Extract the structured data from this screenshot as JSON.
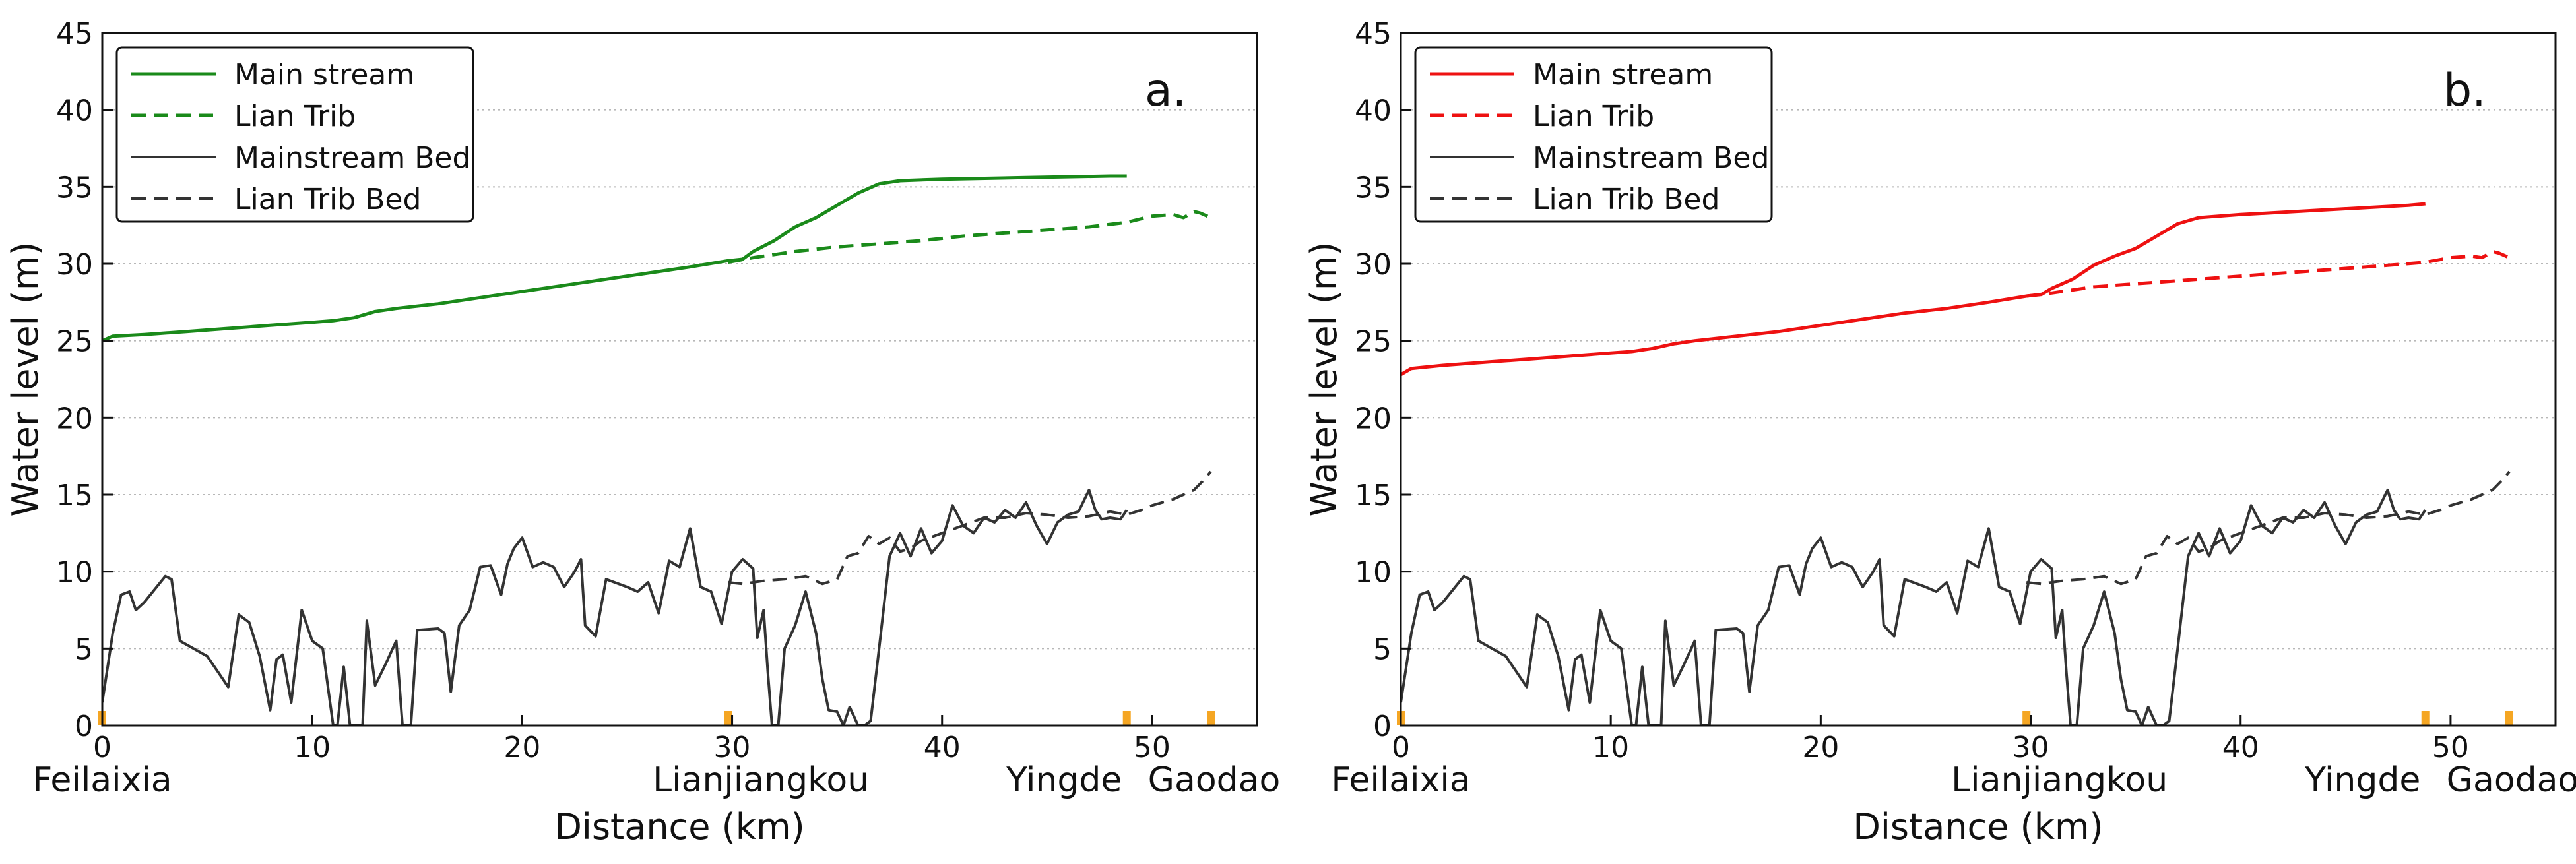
{
  "chart_data": [
    {
      "type": "line",
      "panel_label": "a.",
      "xlabel": "Distance (km)",
      "ylabel": "Water level (m)",
      "xlim": [
        0,
        55
      ],
      "ylim": [
        0,
        45
      ],
      "xticks": [
        0,
        10,
        20,
        30,
        40,
        50
      ],
      "yticks": [
        0,
        5,
        10,
        15,
        20,
        25,
        30,
        35,
        40,
        45
      ],
      "grid": "horizontal dotted",
      "legend_position": "top-left",
      "stations": [
        {
          "name": "Feilaixia",
          "x": 0
        },
        {
          "name": "Lianjiangkou",
          "x": 29.8
        },
        {
          "name": "Yingde",
          "x": 48.8
        },
        {
          "name": "Gaodao",
          "x": 52.8
        }
      ],
      "station_marker_color": "#f5a623",
      "series": [
        {
          "name": "Main stream",
          "color": "#1a8a1a",
          "style": "solid",
          "x": [
            0,
            0.5,
            2,
            4,
            6,
            8,
            10,
            11,
            12,
            13,
            14,
            16,
            18,
            20,
            22,
            24,
            26,
            28,
            29.8,
            30.5,
            31,
            32,
            33,
            34,
            35,
            36,
            37,
            38,
            40,
            44,
            48,
            48.8
          ],
          "y": [
            25.0,
            25.3,
            25.4,
            25.6,
            25.8,
            26.0,
            26.2,
            26.3,
            26.5,
            26.9,
            27.1,
            27.4,
            27.8,
            28.2,
            28.6,
            29.0,
            29.4,
            29.8,
            30.2,
            30.3,
            30.8,
            31.5,
            32.4,
            33.0,
            33.8,
            34.6,
            35.2,
            35.4,
            35.5,
            35.6,
            35.7,
            35.7
          ]
        },
        {
          "name": "Lian Trib",
          "color": "#1a8a1a",
          "style": "dashed",
          "x": [
            29.8,
            31,
            33,
            35,
            37,
            39,
            41,
            43,
            45,
            47,
            48.8,
            50,
            51,
            51.5,
            52,
            52.3,
            52.8
          ],
          "y": [
            30.1,
            30.4,
            30.8,
            31.1,
            31.3,
            31.5,
            31.8,
            32.0,
            32.2,
            32.4,
            32.7,
            33.1,
            33.2,
            33.0,
            33.4,
            33.3,
            33.0
          ]
        },
        {
          "name": "Mainstream Bed",
          "color": "#333333",
          "style": "solid",
          "x": [
            0,
            0.5,
            0.9,
            1.3,
            1.6,
            2,
            3,
            3.3,
            3.7,
            5,
            5.5,
            6,
            6.5,
            7,
            7.5,
            8,
            8.3,
            8.6,
            9,
            9.5,
            10,
            10.5,
            10.8,
            11,
            11.2,
            11.5,
            11.8,
            12,
            12.4,
            12.6,
            13,
            13.5,
            14,
            14.3,
            14.7,
            15,
            16,
            16.3,
            16.6,
            17,
            17.5,
            18,
            18.5,
            19,
            19.3,
            19.6,
            20,
            20.5,
            21,
            21.5,
            22,
            22.5,
            22.8,
            23,
            23.5,
            24,
            25,
            25.5,
            26,
            26.5,
            27,
            27.5,
            28,
            28.5,
            29,
            29.5,
            30,
            30.5,
            31,
            31.2,
            31.5,
            31.7,
            31.9,
            32.2,
            32.5,
            33,
            33.5,
            34,
            34.3,
            34.6,
            35,
            35.3,
            35.6,
            36,
            36.3,
            36.6,
            37,
            37.5,
            38,
            38.5,
            39,
            39.5,
            40,
            40.5,
            41,
            41.5,
            42,
            42.5,
            43,
            43.5,
            44,
            44.5,
            45,
            45.5,
            46,
            46.5,
            47,
            47.3,
            47.6,
            48,
            48.5,
            48.8
          ],
          "y": [
            1.5,
            6.0,
            8.5,
            8.7,
            7.5,
            8.0,
            9.7,
            9.5,
            5.5,
            4.5,
            3.5,
            2.5,
            7.2,
            6.7,
            4.5,
            1.0,
            4.3,
            4.6,
            1.5,
            7.5,
            5.5,
            5.0,
            2.0,
            0,
            0,
            3.8,
            0,
            0,
            0,
            6.8,
            2.6,
            4.0,
            5.5,
            0,
            0,
            6.2,
            6.3,
            6.0,
            2.2,
            6.5,
            7.5,
            10.3,
            10.4,
            8.5,
            10.5,
            11.5,
            12.2,
            10.3,
            10.6,
            10.3,
            9.0,
            10.0,
            10.8,
            6.5,
            5.8,
            9.5,
            9.0,
            8.7,
            9.3,
            7.3,
            10.7,
            10.3,
            12.8,
            9.0,
            8.7,
            6.6,
            10.0,
            10.8,
            10.2,
            5.7,
            7.5,
            3.5,
            0,
            0,
            5.0,
            6.5,
            8.7,
            6.0,
            3.0,
            1.0,
            0.9,
            0,
            1.2,
            0,
            0,
            0.3,
            5.0,
            11.0,
            12.5,
            11.0,
            12.8,
            11.2,
            12.0,
            14.3,
            13.0,
            12.5,
            13.5,
            13.2,
            14.0,
            13.5,
            14.5,
            13.0,
            11.8,
            13.2,
            13.7,
            13.9,
            15.3,
            14.0,
            13.4,
            13.5,
            13.4,
            14.0
          ]
        },
        {
          "name": "Lian Trib Bed",
          "color": "#333333",
          "style": "dashed",
          "x": [
            29.8,
            30.5,
            31.5,
            32.5,
            33.5,
            34.3,
            35,
            35.5,
            36,
            36.5,
            37,
            37.5,
            38,
            38.5,
            39,
            40,
            41,
            42,
            43,
            44,
            45,
            46,
            47,
            48,
            48.8,
            49.5,
            50,
            50.5,
            51,
            51.5,
            52,
            52.5,
            52.8
          ],
          "y": [
            9.3,
            9.2,
            9.4,
            9.5,
            9.7,
            9.2,
            9.5,
            11.0,
            11.2,
            12.3,
            11.8,
            12.2,
            11.3,
            11.5,
            12.0,
            12.5,
            13.0,
            13.5,
            13.5,
            13.8,
            13.7,
            13.5,
            13.6,
            13.9,
            13.7,
            14.0,
            14.3,
            14.5,
            14.7,
            15.0,
            15.3,
            16.0,
            16.5
          ]
        }
      ]
    },
    {
      "type": "line",
      "panel_label": "b.",
      "xlabel": "Distance (km)",
      "ylabel": "Water level (m)",
      "xlim": [
        0,
        55
      ],
      "ylim": [
        0,
        45
      ],
      "xticks": [
        0,
        10,
        20,
        30,
        40,
        50
      ],
      "yticks": [
        0,
        5,
        10,
        15,
        20,
        25,
        30,
        35,
        40,
        45
      ],
      "grid": "horizontal dotted",
      "legend_position": "top-left",
      "stations": [
        {
          "name": "Feilaixia",
          "x": 0
        },
        {
          "name": "Lianjiangkou",
          "x": 29.8
        },
        {
          "name": "Yingde",
          "x": 48.8
        },
        {
          "name": "Gaodao",
          "x": 52.8
        }
      ],
      "station_marker_color": "#f5a623",
      "series": [
        {
          "name": "Main stream",
          "color": "#ee1111",
          "style": "solid",
          "x": [
            0,
            0.5,
            2,
            4,
            6,
            8,
            10,
            11,
            12,
            13,
            14,
            16,
            18,
            20,
            22,
            24,
            26,
            28,
            29.8,
            30.5,
            31,
            32,
            33,
            34,
            35,
            36,
            37,
            38,
            40,
            44,
            48,
            48.8
          ],
          "y": [
            22.8,
            23.2,
            23.4,
            23.6,
            23.8,
            24.0,
            24.2,
            24.3,
            24.5,
            24.8,
            25.0,
            25.3,
            25.6,
            26.0,
            26.4,
            26.8,
            27.1,
            27.5,
            27.9,
            28.0,
            28.4,
            29.0,
            29.9,
            30.5,
            31.0,
            31.8,
            32.6,
            33.0,
            33.2,
            33.5,
            33.8,
            33.9
          ]
        },
        {
          "name": "Lian Trib",
          "color": "#ee1111",
          "style": "dashed",
          "x": [
            29.8,
            31,
            33,
            35,
            37,
            39,
            41,
            43,
            45,
            47,
            48.8,
            50,
            51,
            51.5,
            52,
            52.3,
            52.8
          ],
          "y": [
            27.9,
            28.1,
            28.5,
            28.7,
            28.9,
            29.1,
            29.3,
            29.5,
            29.7,
            29.9,
            30.1,
            30.4,
            30.5,
            30.4,
            30.8,
            30.7,
            30.4
          ]
        },
        {
          "name": "Mainstream Bed",
          "color": "#333333",
          "style": "solid",
          "x": [
            0,
            0.5,
            0.9,
            1.3,
            1.6,
            2,
            3,
            3.3,
            3.7,
            5,
            5.5,
            6,
            6.5,
            7,
            7.5,
            8,
            8.3,
            8.6,
            9,
            9.5,
            10,
            10.5,
            10.8,
            11,
            11.2,
            11.5,
            11.8,
            12,
            12.4,
            12.6,
            13,
            13.5,
            14,
            14.3,
            14.7,
            15,
            16,
            16.3,
            16.6,
            17,
            17.5,
            18,
            18.5,
            19,
            19.3,
            19.6,
            20,
            20.5,
            21,
            21.5,
            22,
            22.5,
            22.8,
            23,
            23.5,
            24,
            25,
            25.5,
            26,
            26.5,
            27,
            27.5,
            28,
            28.5,
            29,
            29.5,
            30,
            30.5,
            31,
            31.2,
            31.5,
            31.7,
            31.9,
            32.2,
            32.5,
            33,
            33.5,
            34,
            34.3,
            34.6,
            35,
            35.3,
            35.6,
            36,
            36.3,
            36.6,
            37,
            37.5,
            38,
            38.5,
            39,
            39.5,
            40,
            40.5,
            41,
            41.5,
            42,
            42.5,
            43,
            43.5,
            44,
            44.5,
            45,
            45.5,
            46,
            46.5,
            47,
            47.3,
            47.6,
            48,
            48.5,
            48.8
          ],
          "y": [
            1.5,
            6.0,
            8.5,
            8.7,
            7.5,
            8.0,
            9.7,
            9.5,
            5.5,
            4.5,
            3.5,
            2.5,
            7.2,
            6.7,
            4.5,
            1.0,
            4.3,
            4.6,
            1.5,
            7.5,
            5.5,
            5.0,
            2.0,
            0,
            0,
            3.8,
            0,
            0,
            0,
            6.8,
            2.6,
            4.0,
            5.5,
            0,
            0,
            6.2,
            6.3,
            6.0,
            2.2,
            6.5,
            7.5,
            10.3,
            10.4,
            8.5,
            10.5,
            11.5,
            12.2,
            10.3,
            10.6,
            10.3,
            9.0,
            10.0,
            10.8,
            6.5,
            5.8,
            9.5,
            9.0,
            8.7,
            9.3,
            7.3,
            10.7,
            10.3,
            12.8,
            9.0,
            8.7,
            6.6,
            10.0,
            10.8,
            10.2,
            5.7,
            7.5,
            3.5,
            0,
            0,
            5.0,
            6.5,
            8.7,
            6.0,
            3.0,
            1.0,
            0.9,
            0,
            1.2,
            0,
            0,
            0.3,
            5.0,
            11.0,
            12.5,
            11.0,
            12.8,
            11.2,
            12.0,
            14.3,
            13.0,
            12.5,
            13.5,
            13.2,
            14.0,
            13.5,
            14.5,
            13.0,
            11.8,
            13.2,
            13.7,
            13.9,
            15.3,
            14.0,
            13.4,
            13.5,
            13.4,
            14.0
          ]
        },
        {
          "name": "Lian Trib Bed",
          "color": "#333333",
          "style": "dashed",
          "x": [
            29.8,
            30.5,
            31.5,
            32.5,
            33.5,
            34.3,
            35,
            35.5,
            36,
            36.5,
            37,
            37.5,
            38,
            38.5,
            39,
            40,
            41,
            42,
            43,
            44,
            45,
            46,
            47,
            48,
            48.8,
            49.5,
            50,
            50.5,
            51,
            51.5,
            52,
            52.5,
            52.8
          ],
          "y": [
            9.3,
            9.2,
            9.4,
            9.5,
            9.7,
            9.2,
            9.5,
            11.0,
            11.2,
            12.3,
            11.8,
            12.2,
            11.3,
            11.5,
            12.0,
            12.5,
            13.0,
            13.5,
            13.5,
            13.8,
            13.7,
            13.5,
            13.6,
            13.9,
            13.7,
            14.0,
            14.3,
            14.5,
            14.7,
            15.0,
            15.3,
            16.0,
            16.5
          ]
        }
      ]
    }
  ]
}
